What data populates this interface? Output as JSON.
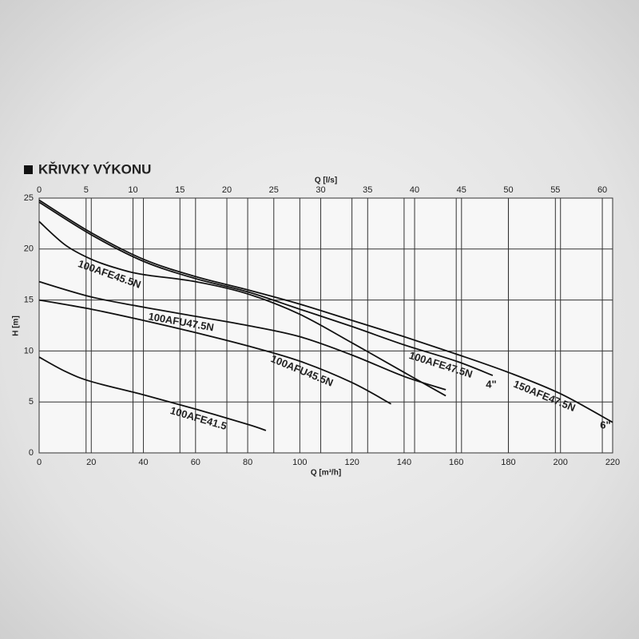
{
  "chart_data": {
    "type": "line",
    "title": "KŘIVKY VÝKONU",
    "x_label": "Q [m³/h]",
    "x2_label": "Q [l/s]",
    "y_label": "H [m]",
    "xlim": [
      0,
      220
    ],
    "xticks": [
      0,
      20,
      40,
      60,
      80,
      100,
      120,
      140,
      160,
      180,
      200,
      220
    ],
    "x2lim": [
      0,
      61.1
    ],
    "x2ticks": [
      0,
      5,
      10,
      15,
      20,
      25,
      30,
      35,
      40,
      45,
      50,
      55,
      60
    ],
    "ylim": [
      0,
      25
    ],
    "yticks": [
      0,
      5,
      10,
      15,
      20,
      25
    ],
    "grid": true,
    "series": [
      {
        "name": "150AFE47.5N",
        "color": "#111111",
        "x": [
          0,
          20,
          40,
          60,
          80,
          100,
          120,
          140,
          160,
          180,
          200,
          220
        ],
        "values": [
          24.8,
          21.6,
          19,
          17.3,
          16,
          14.6,
          13,
          11.4,
          9.7,
          7.9,
          5.8,
          3.0
        ]
      },
      {
        "name": "100AFE47.5N",
        "color": "#111111",
        "x": [
          0,
          20,
          40,
          60,
          80,
          100,
          120,
          140,
          160,
          174
        ],
        "values": [
          24.6,
          21.4,
          18.8,
          17.1,
          15.8,
          14.1,
          12.4,
          10.6,
          9.0,
          7.6
        ]
      },
      {
        "name": "100AFE45.5N",
        "color": "#111111",
        "x": [
          0,
          10,
          20,
          30,
          40,
          60,
          80,
          100,
          120,
          140,
          156
        ],
        "values": [
          22.7,
          20.4,
          19,
          18.1,
          17.5,
          16.8,
          15.6,
          13.6,
          10.8,
          7.9,
          5.6
        ]
      },
      {
        "name": "100AFU47.5N",
        "color": "#111111",
        "x": [
          0,
          20,
          40,
          60,
          80,
          100,
          120,
          140,
          156
        ],
        "values": [
          16.8,
          15.3,
          14.3,
          13.4,
          12.5,
          11.4,
          9.6,
          7.5,
          6.2
        ]
      },
      {
        "name": "100AFU45.5N",
        "color": "#111111",
        "x": [
          0,
          20,
          40,
          60,
          80,
          100,
          120,
          135
        ],
        "values": [
          15,
          14.1,
          13,
          11.8,
          10.5,
          9.0,
          6.9,
          4.8
        ]
      },
      {
        "name": "100AFE41.5",
        "color": "#111111",
        "x": [
          0,
          10,
          20,
          40,
          60,
          80,
          87
        ],
        "values": [
          9.4,
          8.0,
          7.0,
          5.7,
          4.3,
          2.8,
          2.2
        ]
      }
    ],
    "annotations": [
      "4\"",
      "6\""
    ]
  }
}
